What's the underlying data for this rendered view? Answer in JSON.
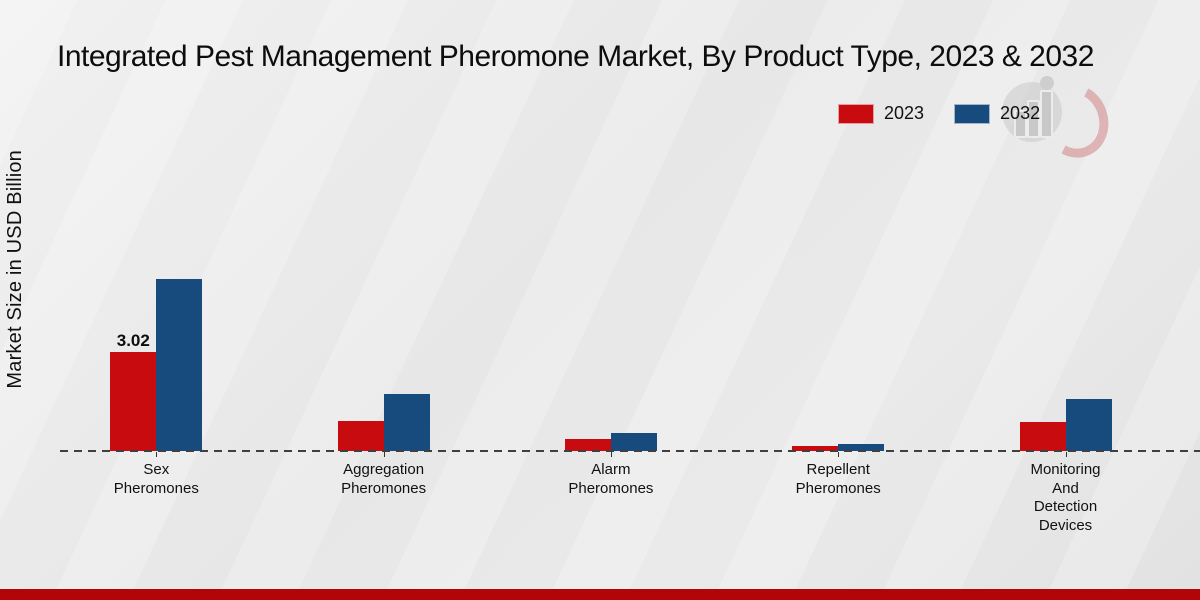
{
  "title": "Integrated Pest Management Pheromone Market, By Product Type, 2023 & 2032",
  "y_axis_label": "Market Size in USD Billion",
  "legend": {
    "items": [
      {
        "label": "2023",
        "color": "#c70b0e"
      },
      {
        "label": "2032",
        "color": "#174a7d"
      }
    ]
  },
  "footer_band_color": "#b20508",
  "watermark": "market-research-future-logo",
  "chart_data": {
    "type": "bar",
    "title": "Integrated Pest Management Pheromone Market, By Product Type, 2023 & 2032",
    "xlabel": "",
    "ylabel": "Market Size in USD Billion",
    "legend_position": "top-right",
    "grid": false,
    "y_axis_shown": false,
    "x_axis_style": "dashed",
    "categories": [
      "Sex Pheromones",
      "Aggregation Pheromones",
      "Alarm Pheromones",
      "Repellent Pheromones",
      "Monitoring And Detection Devices"
    ],
    "category_label_lines": [
      [
        "Sex",
        "Pheromones"
      ],
      [
        "Aggregation",
        "Pheromones"
      ],
      [
        "Alarm",
        "Pheromones"
      ],
      [
        "Repellent",
        "Pheromones"
      ],
      [
        "Monitoring",
        "And",
        "Detection",
        "Devices"
      ]
    ],
    "series": [
      {
        "name": "2023",
        "color": "#c70b0e",
        "values": [
          3.02,
          0.92,
          0.38,
          0.15,
          0.87
        ]
      },
      {
        "name": "2032",
        "color": "#174a7d",
        "values": [
          5.25,
          1.74,
          0.54,
          0.21,
          1.59
        ]
      }
    ],
    "data_labels": [
      {
        "series_index": 0,
        "category_index": 0,
        "text": "3.02"
      }
    ],
    "ylim": [
      0,
      6
    ]
  }
}
